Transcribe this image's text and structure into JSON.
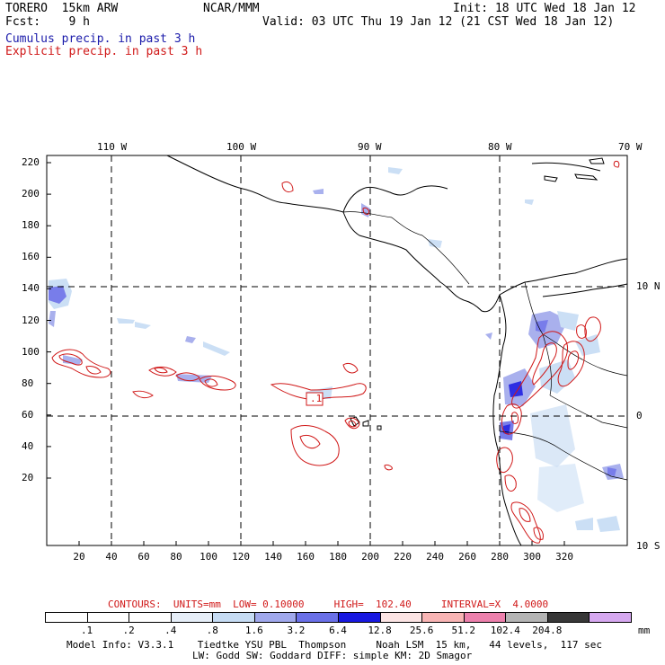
{
  "header": {
    "model": "TORERO  15km ARW",
    "org": "NCAR/MMM",
    "init": "Init: 18 UTC Wed 18 Jan 12",
    "fcst": "Fcst:    9 h",
    "valid": "Valid: 03 UTC Thu 19 Jan 12 (21 CST Wed 18 Jan 12)",
    "legend_cumulus": "Cumulus precip. in past 3 h",
    "legend_explicit": "Explicit precip. in past 3 h"
  },
  "map": {
    "lon_labels": [
      "110 W",
      "100 W",
      "90 W",
      "80 W",
      "70 W"
    ],
    "lat_labels": [
      "10 N",
      "0",
      "10 S"
    ],
    "y_ticks": [
      "220",
      "200",
      "180",
      "160",
      "140",
      "120",
      "100",
      "80",
      "60",
      "40",
      "20"
    ],
    "x_ticks": [
      "20",
      "40",
      "60",
      "80",
      "100",
      "120",
      "140",
      "160",
      "180",
      "200",
      "220",
      "240",
      "260",
      "280",
      "300",
      "320"
    ],
    "box_label": ".1"
  },
  "contours_text": "CONTOURS:  UNITS=mm  LOW= 0.10000     HIGH=  102.40     INTERVAL=X  4.0000",
  "colorbar": {
    "colors": [
      "#ffffff",
      "#ffffff",
      "#ffffff",
      "#e6eef8",
      "#c6dcf4",
      "#a0a8ec",
      "#6a70e8",
      "#1818e0",
      "#fce4e4",
      "#f8b4b4",
      "#ec80ac",
      "#b4b4b4",
      "#383838",
      "#d6a8f0"
    ],
    "labels": [
      ".1",
      ".2",
      ".4",
      ".8",
      "1.6",
      "3.2",
      "6.4",
      "12.8",
      "25.6",
      "51.2",
      "102.4",
      "204.8"
    ],
    "unit": "mm"
  },
  "footer": {
    "line1": "Model Info: V3.3.1    Tiedtke YSU PBL  Thompson     Noah LSM  15 km,   44 levels,  117 sec",
    "line2": "LW: Godd SW: Goddard DIFF: simple KM: 2D Smagor"
  }
}
